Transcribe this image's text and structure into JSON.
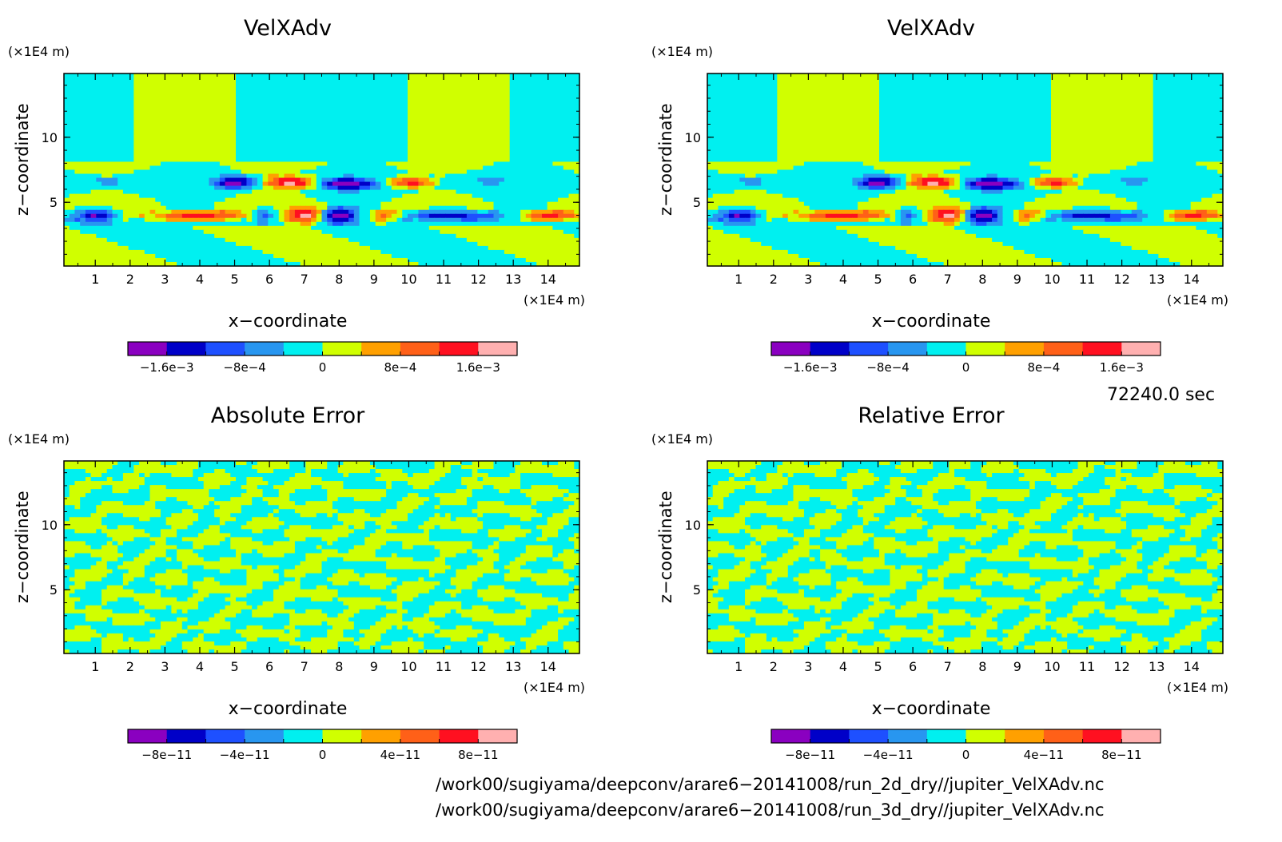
{
  "chart_data": [
    {
      "type": "heatmap",
      "title": "VelXAdv",
      "xlabel": "x−coordinate",
      "ylabel": "z−coordinate",
      "x_unit": "(×1E4 m)",
      "z_unit": "(×1E4 m)",
      "x_ticks": [
        "1",
        "2",
        "3",
        "4",
        "5",
        "6",
        "7",
        "8",
        "9",
        "10",
        "11",
        "12",
        "13",
        "14"
      ],
      "z_ticks": [
        "5",
        "10"
      ],
      "xlim": [
        0.1,
        14.9
      ],
      "zlim": [
        0.1,
        14.9
      ],
      "colorbar": {
        "colors": [
          "#8a00c0",
          "#0000c8",
          "#1e50ff",
          "#2896f0",
          "#00f0f0",
          "#d0ff00",
          "#ffa000",
          "#ff6018",
          "#ff1020",
          "#ffb0b0"
        ],
        "tick_labels": [
          "−1.6e−3",
          "−8e−4",
          "0",
          "8e−4",
          "1.6e−3"
        ]
      },
      "field": "blobs"
    },
    {
      "type": "heatmap",
      "title": "VelXAdv",
      "xlabel": "x−coordinate",
      "ylabel": "z−coordinate",
      "x_unit": "(×1E4 m)",
      "z_unit": "(×1E4 m)",
      "x_ticks": [
        "1",
        "2",
        "3",
        "4",
        "5",
        "6",
        "7",
        "8",
        "9",
        "10",
        "11",
        "12",
        "13",
        "14"
      ],
      "z_ticks": [
        "5",
        "10"
      ],
      "xlim": [
        0.1,
        14.9
      ],
      "zlim": [
        0.1,
        14.9
      ],
      "colorbar": {
        "colors": [
          "#8a00c0",
          "#0000c8",
          "#1e50ff",
          "#2896f0",
          "#00f0f0",
          "#d0ff00",
          "#ffa000",
          "#ff6018",
          "#ff1020",
          "#ffb0b0"
        ],
        "tick_labels": [
          "−1.6e−3",
          "−8e−4",
          "0",
          "8e−4",
          "1.6e−3"
        ]
      },
      "field": "blobs"
    },
    {
      "type": "heatmap",
      "title": "Absolute Error",
      "xlabel": "x−coordinate",
      "ylabel": "z−coordinate",
      "x_unit": "(×1E4 m)",
      "z_unit": "(×1E4 m)",
      "x_ticks": [
        "1",
        "2",
        "3",
        "4",
        "5",
        "6",
        "7",
        "8",
        "9",
        "10",
        "11",
        "12",
        "13",
        "14"
      ],
      "z_ticks": [
        "5",
        "10"
      ],
      "xlim": [
        0.1,
        14.9
      ],
      "zlim": [
        0.1,
        14.9
      ],
      "colorbar": {
        "colors": [
          "#8a00c0",
          "#0000c8",
          "#1e50ff",
          "#2896f0",
          "#00f0f0",
          "#d0ff00",
          "#ffa000",
          "#ff6018",
          "#ff1020",
          "#ffb0b0"
        ],
        "tick_labels": [
          "−8e−11",
          "−4e−11",
          "0",
          "4e−11",
          "8e−11"
        ]
      },
      "field": "noise"
    },
    {
      "type": "heatmap",
      "title": "Relative Error",
      "xlabel": "x−coordinate",
      "ylabel": "z−coordinate",
      "x_unit": "(×1E4 m)",
      "z_unit": "(×1E4 m)",
      "x_ticks": [
        "1",
        "2",
        "3",
        "4",
        "5",
        "6",
        "7",
        "8",
        "9",
        "10",
        "11",
        "12",
        "13",
        "14"
      ],
      "z_ticks": [
        "5",
        "10"
      ],
      "xlim": [
        0.1,
        14.9
      ],
      "zlim": [
        0.1,
        14.9
      ],
      "colorbar": {
        "colors": [
          "#8a00c0",
          "#0000c8",
          "#1e50ff",
          "#2896f0",
          "#00f0f0",
          "#d0ff00",
          "#ffa000",
          "#ff6018",
          "#ff1020",
          "#ffb0b0"
        ],
        "tick_labels": [
          "−8e−11",
          "−4e−11",
          "0",
          "4e−11",
          "8e−11"
        ]
      },
      "field": "noise"
    }
  ],
  "time_label": "72240.0 sec",
  "file_paths": [
    "/work00/sugiyama/deepconv/arare6−20141008/run_2d_dry//jupiter_VelXAdv.nc",
    "/work00/sugiyama/deepconv/arare6−20141008/run_3d_dry//jupiter_VelXAdv.nc"
  ]
}
